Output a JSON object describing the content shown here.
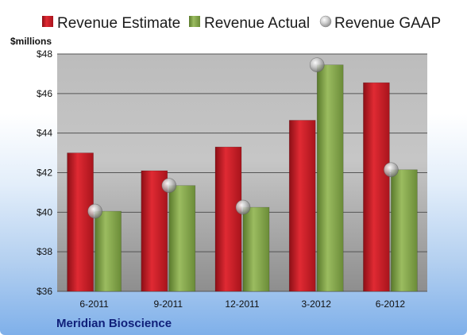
{
  "chart_data": {
    "type": "bar",
    "categories": [
      "6-2011",
      "9-2011",
      "12-2011",
      "3-2012",
      "6-2012"
    ],
    "series": [
      {
        "name": "Revenue Estimate",
        "kind": "bar",
        "color": "#c8202a",
        "values": [
          43.0,
          42.1,
          43.3,
          44.65,
          46.55
        ]
      },
      {
        "name": "Revenue Actual",
        "kind": "bar",
        "color": "#7fa14a",
        "values": [
          40.05,
          41.35,
          40.25,
          47.45,
          42.15
        ]
      },
      {
        "name": "Revenue GAAP",
        "kind": "marker",
        "color": "#b8b8b8",
        "values": [
          40.05,
          41.35,
          40.25,
          47.45,
          42.15
        ]
      }
    ],
    "ylabel": "$millions",
    "ylim": [
      36,
      48
    ],
    "yticks": [
      36,
      38,
      40,
      42,
      44,
      46,
      48
    ],
    "ytick_labels": [
      "$36",
      "$38",
      "$40",
      "$42",
      "$44",
      "$46",
      "$48"
    ],
    "grid": true,
    "legend_position": "top",
    "company": "Meridian Bioscience"
  }
}
